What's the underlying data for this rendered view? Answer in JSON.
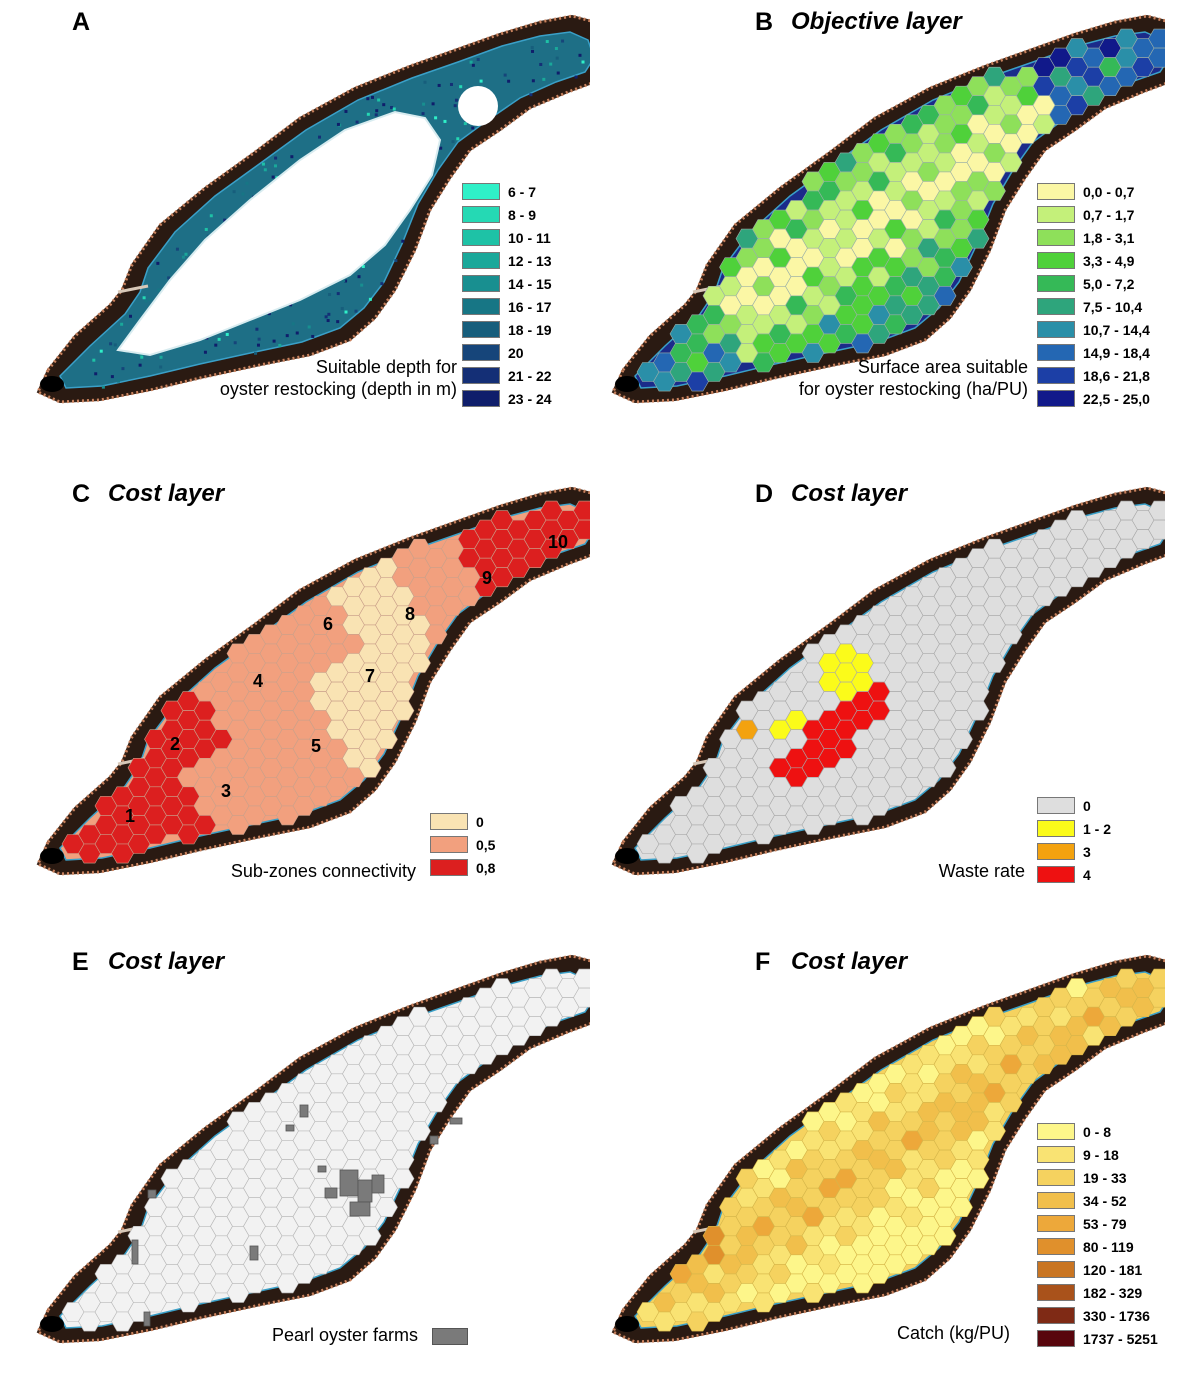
{
  "panels": [
    {
      "letter": "A",
      "title": "",
      "caption": [
        "Suitable depth for",
        "oyster restocking (depth in m)"
      ],
      "legend": [
        {
          "label": "6 - 7",
          "color": "#2ff0c8"
        },
        {
          "label": "8 - 9",
          "color": "#25d9b4"
        },
        {
          "label": "10 - 11",
          "color": "#1ec2a6"
        },
        {
          "label": "12 - 13",
          "color": "#1aa89a"
        },
        {
          "label": "14 - 15",
          "color": "#188f90"
        },
        {
          "label": "16 - 17",
          "color": "#177685"
        },
        {
          "label": "18 - 19",
          "color": "#175e7c"
        },
        {
          "label": "20",
          "color": "#16457a"
        },
        {
          "label": "21 - 22",
          "color": "#142f76"
        },
        {
          "label": "23 - 24",
          "color": "#0f1e6b"
        }
      ]
    },
    {
      "letter": "B",
      "title": "Objective layer",
      "caption": [
        "Surface area suitable",
        "for oyster restocking (ha/PU)"
      ],
      "legend": [
        {
          "label": "0,0 - 0,7",
          "color": "#fbf7a5"
        },
        {
          "label": "0,7 - 1,7",
          "color": "#c4f07a"
        },
        {
          "label": "1,8 - 3,1",
          "color": "#8ee05a"
        },
        {
          "label": "3,3 - 4,9",
          "color": "#4fd13a"
        },
        {
          "label": "5,0 - 7,2",
          "color": "#35b957"
        },
        {
          "label": "7,5 - 10,4",
          "color": "#2ea57c"
        },
        {
          "label": "10,7 - 14,4",
          "color": "#2a8fa8"
        },
        {
          "label": "14,9 - 18,4",
          "color": "#2467b3"
        },
        {
          "label": "18,6 - 21,8",
          "color": "#1c3fa6"
        },
        {
          "label": "22,5 - 25,0",
          "color": "#11198a"
        }
      ]
    },
    {
      "letter": "C",
      "title": "Cost layer",
      "caption": [
        "Sub-zones connectivity"
      ],
      "legend": [
        {
          "label": "0",
          "color": "#f9e3b3"
        },
        {
          "label": "0,5",
          "color": "#f2a07e"
        },
        {
          "label": "0,8",
          "color": "#dc1f1f"
        }
      ],
      "zones": [
        "1",
        "2",
        "3",
        "4",
        "5",
        "6",
        "7",
        "8",
        "9",
        "10"
      ]
    },
    {
      "letter": "D",
      "title": "Cost layer",
      "caption": [
        "Waste rate"
      ],
      "legend": [
        {
          "label": "0",
          "color": "#dedede"
        },
        {
          "label": "1 - 2",
          "color": "#fbfb1a"
        },
        {
          "label": "3",
          "color": "#f3a20f"
        },
        {
          "label": "4",
          "color": "#ee1111"
        }
      ]
    },
    {
      "letter": "E",
      "title": "Cost layer",
      "caption": [
        "Pearl oyster farms"
      ],
      "legend": []
    },
    {
      "letter": "F",
      "title": "Cost layer",
      "caption": [
        "Catch (kg/PU)"
      ],
      "legend": [
        {
          "label": "0 - 8",
          "color": "#fdf68a"
        },
        {
          "label": "9 - 18",
          "color": "#f9e373"
        },
        {
          "label": "19 - 33",
          "color": "#f5d25f"
        },
        {
          "label": "34 - 52",
          "color": "#f1bf4b"
        },
        {
          "label": "53 - 79",
          "color": "#eda83a"
        },
        {
          "label": "80 - 119",
          "color": "#e0902c"
        },
        {
          "label": "120 - 181",
          "color": "#c97522"
        },
        {
          "label": "182 - 329",
          "color": "#a9521b"
        },
        {
          "label": "330 - 1736",
          "color": "#7f2a15"
        },
        {
          "label": "1737 - 5251",
          "color": "#58060d"
        }
      ]
    }
  ]
}
